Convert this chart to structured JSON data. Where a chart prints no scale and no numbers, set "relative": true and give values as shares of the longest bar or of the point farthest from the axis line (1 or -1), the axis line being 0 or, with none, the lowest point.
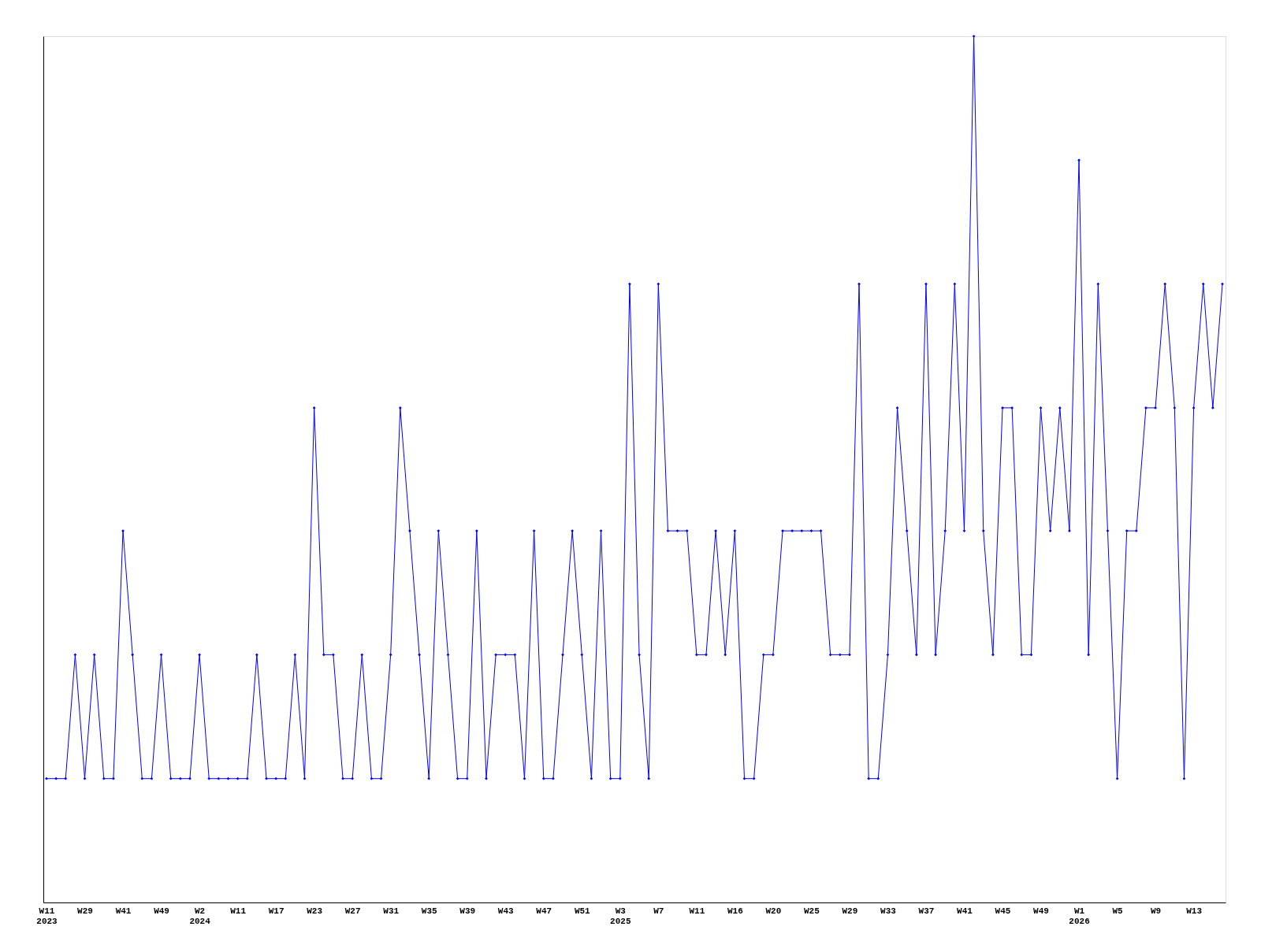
{
  "chart_data": {
    "type": "line",
    "relative": true,
    "color": "#0000ff",
    "marker": "diamond",
    "line_style": "solid",
    "grid": false,
    "categories": [
      "W11\n2023",
      null,
      null,
      null,
      "W29",
      null,
      null,
      null,
      "W41",
      null,
      null,
      null,
      "W49",
      null,
      null,
      null,
      "W2\n2024",
      null,
      null,
      null,
      "W11",
      null,
      null,
      null,
      "W17",
      null,
      null,
      null,
      "W23",
      null,
      null,
      null,
      "W27",
      null,
      null,
      null,
      "W31",
      null,
      null,
      null,
      "W35",
      null,
      null,
      null,
      "W39",
      null,
      null,
      null,
      "W43",
      null,
      null,
      null,
      "W47",
      null,
      null,
      null,
      "W51",
      null,
      null,
      null,
      "W3\n2025",
      null,
      null,
      null,
      "W7",
      null,
      null,
      null,
      "W11",
      null,
      null,
      null,
      "W16",
      null,
      null,
      null,
      "W20",
      null,
      null,
      null,
      "W25",
      null,
      null,
      null,
      "W29",
      null,
      null,
      null,
      "W33",
      null,
      null,
      null,
      "W37",
      null,
      null,
      null,
      "W41",
      null,
      null,
      null,
      "W45",
      null,
      null,
      null,
      "W49",
      null,
      null,
      null,
      "W1\n2026",
      null,
      null,
      null,
      "W5",
      null,
      null,
      null,
      "W9",
      null,
      null,
      null,
      "W13",
      null,
      null,
      null
    ],
    "values": [
      0.143,
      0.143,
      0.143,
      0.286,
      0.143,
      0.286,
      0.143,
      0.143,
      0.429,
      0.286,
      0.143,
      0.143,
      0.286,
      0.143,
      0.143,
      0.143,
      0.286,
      0.143,
      0.143,
      0.143,
      0.143,
      0.143,
      0.286,
      0.143,
      0.143,
      0.143,
      0.286,
      0.143,
      0.571,
      0.286,
      0.286,
      0.143,
      0.143,
      0.286,
      0.143,
      0.143,
      0.286,
      0.571,
      0.429,
      0.286,
      0.143,
      0.429,
      0.286,
      0.143,
      0.143,
      0.429,
      0.143,
      0.286,
      0.286,
      0.286,
      0.143,
      0.429,
      0.143,
      0.143,
      0.286,
      0.429,
      0.286,
      0.143,
      0.429,
      0.143,
      0.143,
      0.714,
      0.286,
      0.143,
      0.714,
      0.429,
      0.429,
      0.429,
      0.286,
      0.286,
      0.429,
      0.286,
      0.429,
      0.143,
      0.143,
      0.286,
      0.286,
      0.429,
      0.429,
      0.429,
      0.429,
      0.429,
      0.286,
      0.286,
      0.286,
      0.714,
      0.143,
      0.143,
      0.286,
      0.571,
      0.429,
      0.286,
      0.714,
      0.286,
      0.429,
      0.714,
      0.429,
      1,
      0.429,
      0.286,
      0.571,
      0.571,
      0.286,
      0.286,
      0.571,
      0.429,
      0.571,
      0.429,
      0.857,
      0.286,
      0.714,
      0.429,
      0.143,
      0.429,
      0.429,
      0.571,
      0.571,
      0.714,
      0.571,
      0.143,
      0.571,
      0.714,
      0.571,
      0.714
    ]
  }
}
